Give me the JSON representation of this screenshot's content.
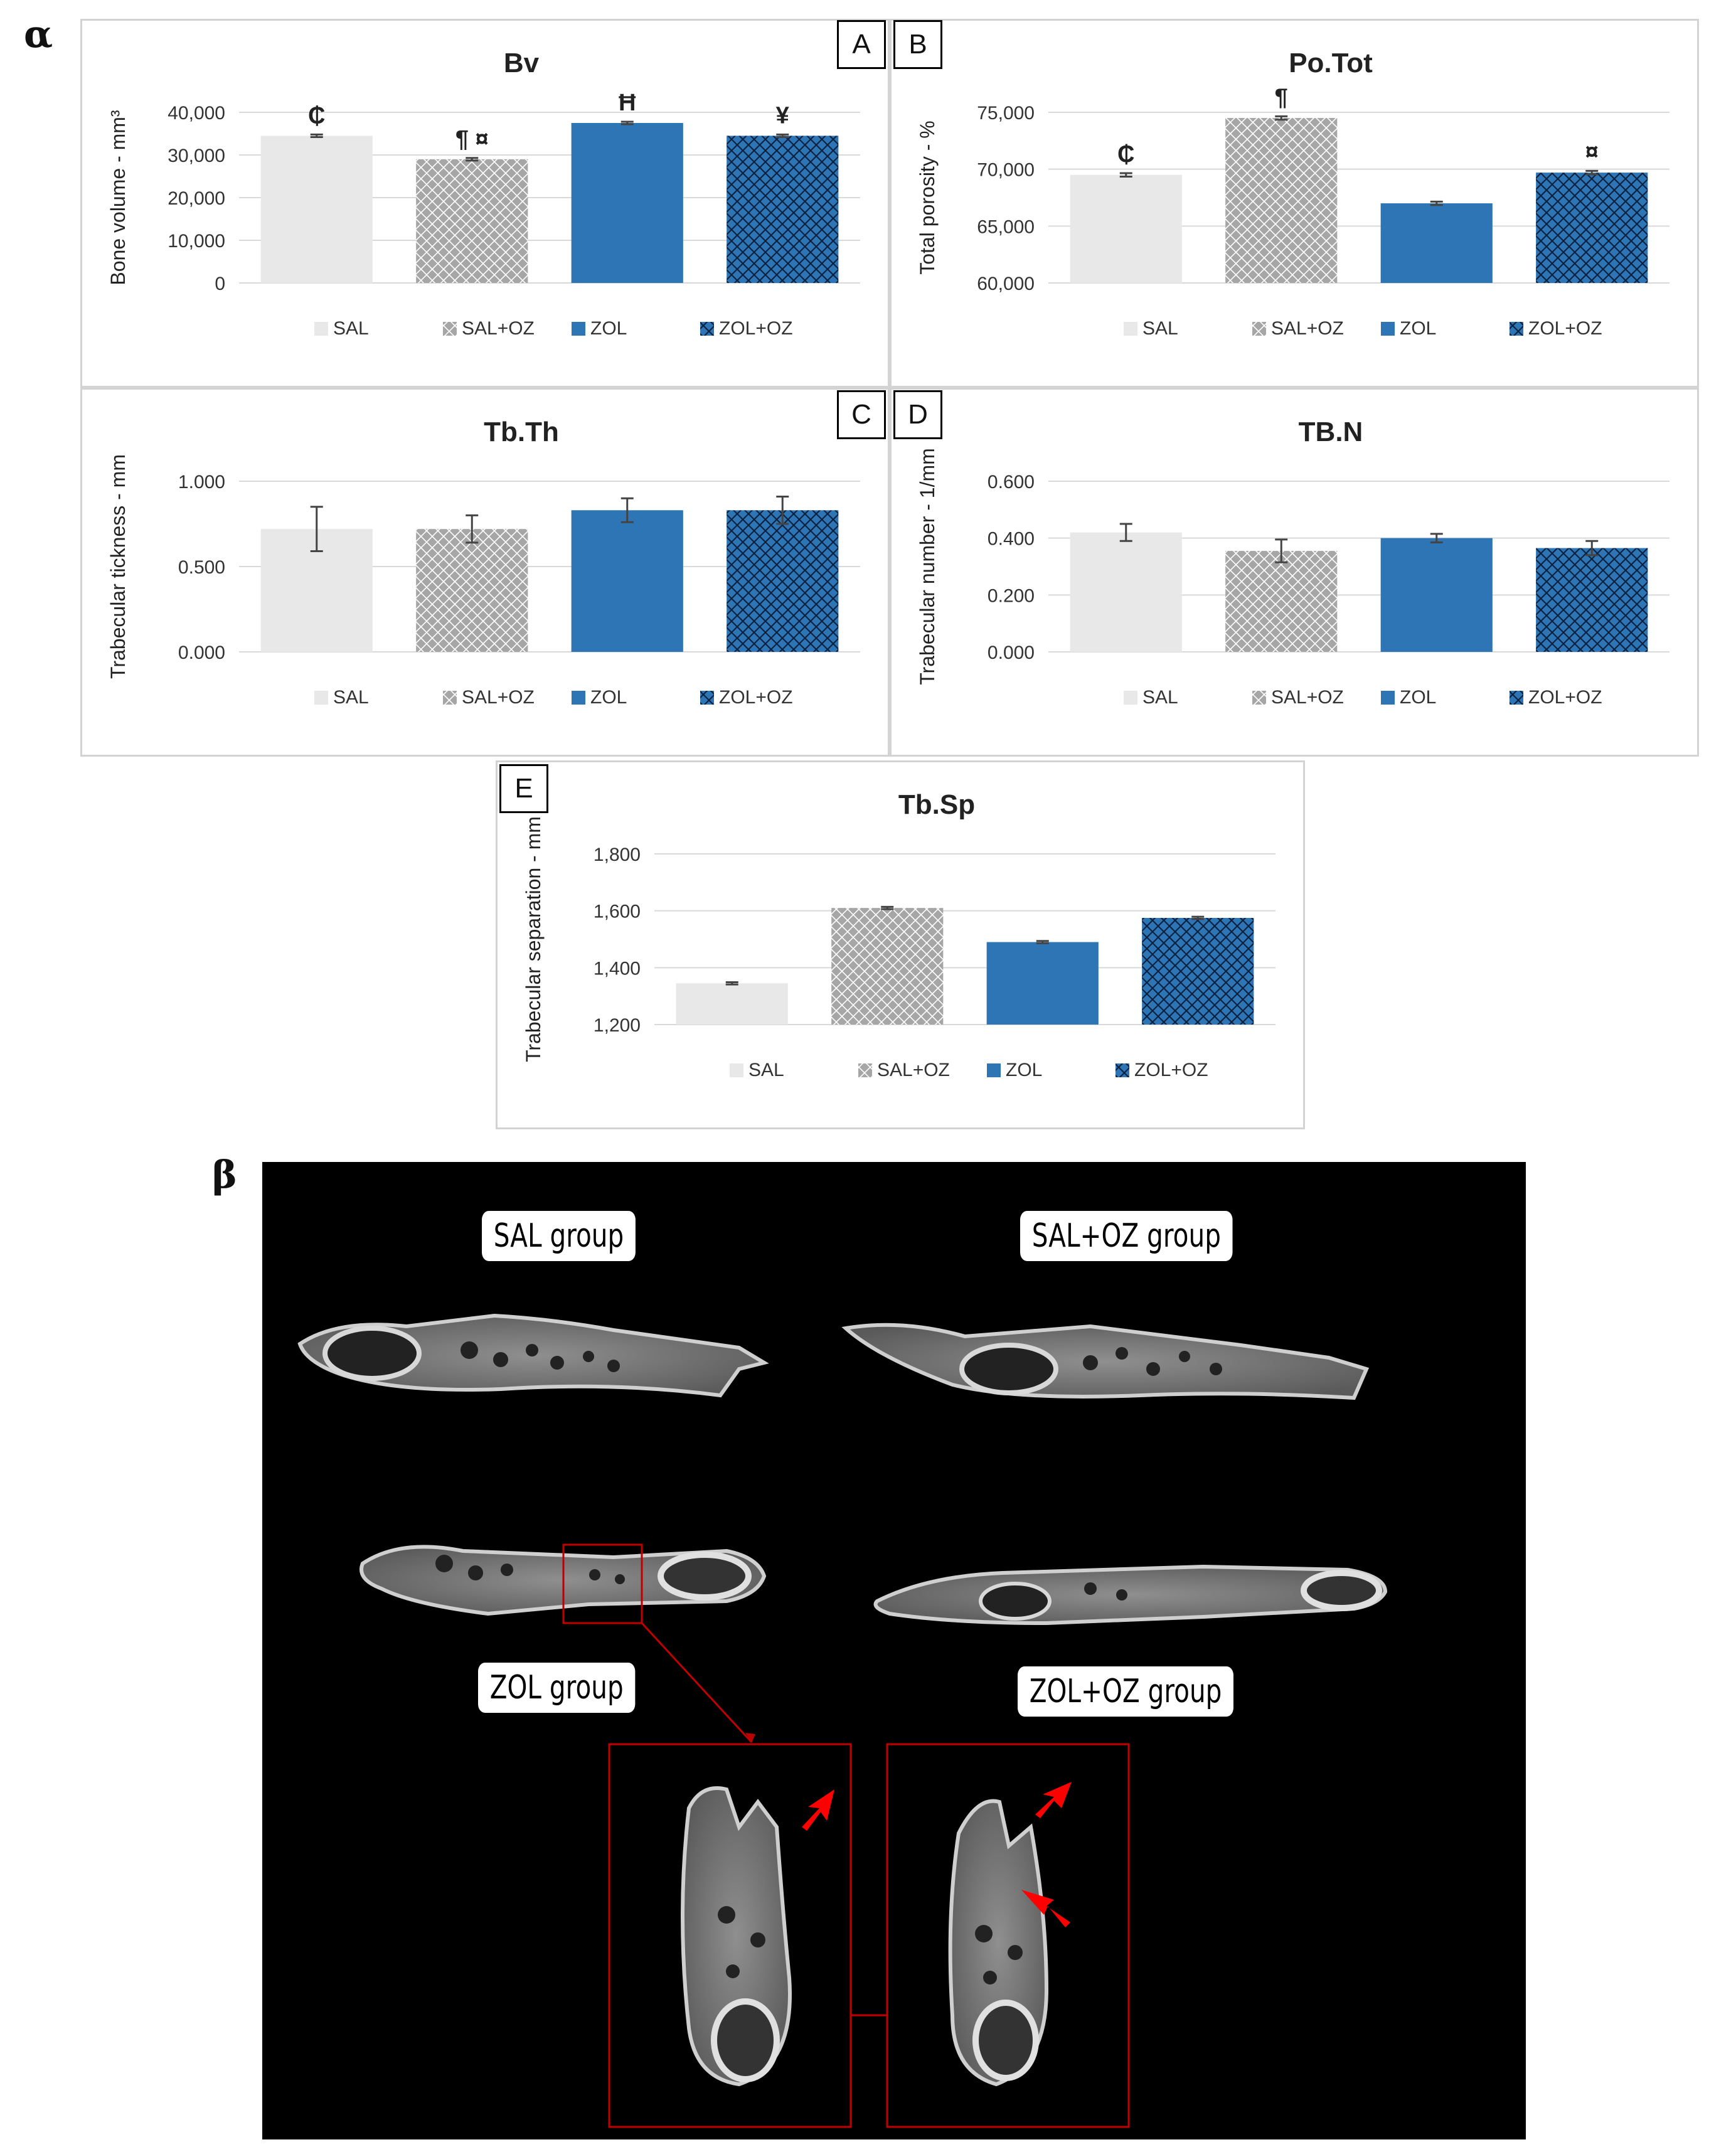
{
  "section_labels": {
    "alpha": "α",
    "beta": "β"
  },
  "legend": [
    "SAL",
    "SAL+OZ",
    "ZOL",
    "ZOL+OZ"
  ],
  "colors": {
    "SAL": "#e8e8e8",
    "SAL+OZ": "#a6a6a6",
    "ZOL": "#2e75b6",
    "ZOL+OZ": "#2e75b6",
    "grid": "#d9d9d9",
    "ct_background": "#000000",
    "inset_border": "#c00000",
    "arrow": "#ff0000"
  },
  "chart_data": [
    {
      "id": "A",
      "type": "bar",
      "title": "Bv",
      "ylabel": "Bone volume  - mm³",
      "categories": [
        "SAL",
        "SAL+OZ",
        "ZOL",
        "ZOL+OZ"
      ],
      "values": [
        34500,
        29000,
        37500,
        34500
      ],
      "errors": [
        300,
        300,
        300,
        300
      ],
      "ylim": [
        0,
        40000
      ],
      "yticks": [
        "0",
        "10,000",
        "20,000",
        "30,000",
        "40,000"
      ],
      "ytick_values": [
        0,
        10000,
        20000,
        30000,
        40000
      ],
      "annotations": [
        "₵",
        "¶ ¤",
        "Ħ",
        "¥"
      ]
    },
    {
      "id": "B",
      "type": "bar",
      "title": "Po.Tot",
      "ylabel": "Total porosity  - %",
      "categories": [
        "SAL",
        "SAL+OZ",
        "ZOL",
        "ZOL+OZ"
      ],
      "values": [
        69500,
        74500,
        67000,
        69700
      ],
      "errors": [
        150,
        150,
        150,
        150
      ],
      "ylim": [
        60000,
        75000
      ],
      "yticks": [
        "60,000",
        "65,000",
        "70,000",
        "75,000"
      ],
      "ytick_values": [
        60000,
        65000,
        70000,
        75000
      ],
      "annotations": [
        "₵",
        "¶",
        "",
        "¤"
      ]
    },
    {
      "id": "C",
      "type": "bar",
      "title": "Tb.Th",
      "ylabel": "Trabecular tickness - mm",
      "categories": [
        "SAL",
        "SAL+OZ",
        "ZOL",
        "ZOL+OZ"
      ],
      "values": [
        0.72,
        0.72,
        0.83,
        0.83
      ],
      "errors": [
        0.13,
        0.08,
        0.07,
        0.08
      ],
      "ylim": [
        0,
        1.0
      ],
      "yticks": [
        "0.000",
        "0.500",
        "1.000"
      ],
      "ytick_values": [
        0,
        0.5,
        1.0
      ],
      "annotations": [
        "",
        "",
        "",
        ""
      ]
    },
    {
      "id": "D",
      "type": "bar",
      "title": "TB.N",
      "ylabel": "Trabecular number  - 1/mm",
      "categories": [
        "SAL",
        "SAL+OZ",
        "ZOL",
        "ZOL+OZ"
      ],
      "values": [
        0.42,
        0.355,
        0.4,
        0.365
      ],
      "errors": [
        0.03,
        0.04,
        0.015,
        0.025
      ],
      "ylim": [
        0,
        0.6
      ],
      "yticks": [
        "0.000",
        "0.200",
        "0.400",
        "0.600"
      ],
      "ytick_values": [
        0,
        0.2,
        0.4,
        0.6
      ],
      "annotations": [
        "",
        "",
        "",
        ""
      ]
    },
    {
      "id": "E",
      "type": "bar",
      "title": "Tb.Sp",
      "ylabel": "Trabecular  separation - mm",
      "categories": [
        "SAL",
        "SAL+OZ",
        "ZOL",
        "ZOL+OZ"
      ],
      "values": [
        1345,
        1610,
        1490,
        1575
      ],
      "errors": [
        4,
        4,
        4,
        4
      ],
      "ylim": [
        1200,
        1800
      ],
      "yticks": [
        "1,200",
        "1,400",
        "1,600",
        "1,800"
      ],
      "ytick_values": [
        1200,
        1400,
        1600,
        1800
      ],
      "annotations": [
        "",
        "",
        "",
        ""
      ]
    }
  ],
  "ct_images": {
    "groups": [
      "SAL group",
      "SAL+OZ group",
      "ZOL group",
      "ZOL+OZ group"
    ]
  }
}
